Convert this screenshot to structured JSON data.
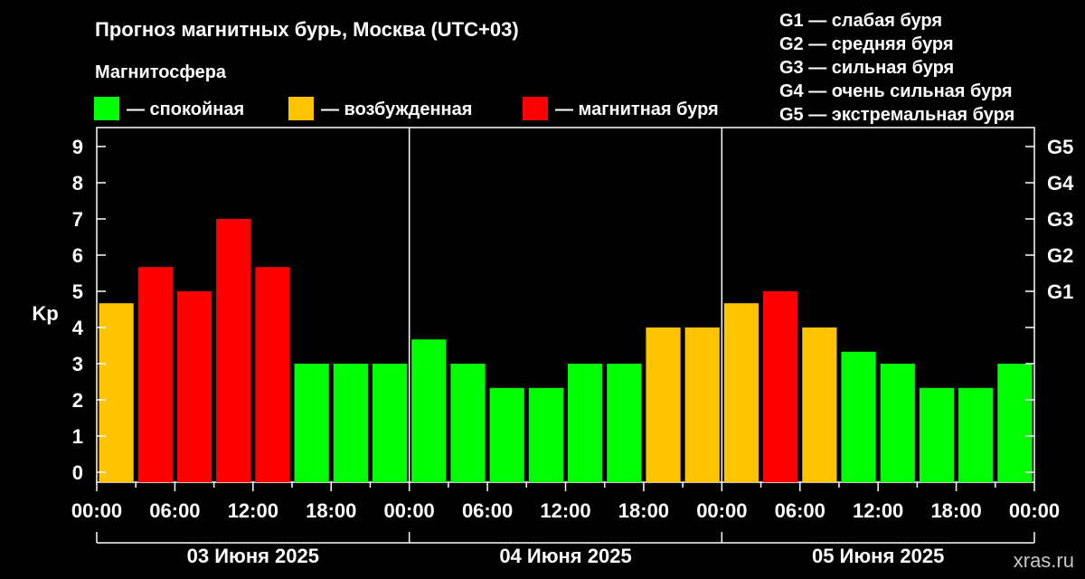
{
  "title": "Прогноз магнитных бурь, Москва (UTC+03)",
  "legend": {
    "heading": "Магнитосфера",
    "items": [
      {
        "label": "— спокойная",
        "color": "#00ff00"
      },
      {
        "label": "— возбужденная",
        "color": "#ffc400"
      },
      {
        "label": "— магнитная буря",
        "color": "#ff0000"
      }
    ]
  },
  "g_scale": [
    "G1 — слабая буря",
    "G2 — средняя буря",
    "G3 — сильная буря",
    "G4 — очень сильная буря",
    "G5 — экстремальная буря"
  ],
  "watermark": "xras.ru",
  "colors": {
    "calm": "#00ff00",
    "excited": "#ffc400",
    "storm": "#ff0000",
    "background": "#000000",
    "axis": "#ffffff"
  },
  "chart_data": {
    "type": "bar",
    "ylabel": "Kp",
    "ylim": [
      0,
      9
    ],
    "yticks": [
      "0",
      "1",
      "2",
      "3",
      "4",
      "5",
      "6",
      "7",
      "8",
      "9"
    ],
    "right_ticks": [
      {
        "kp": 5,
        "label": "G1"
      },
      {
        "kp": 6,
        "label": "G2"
      },
      {
        "kp": 7,
        "label": "G3"
      },
      {
        "kp": 8,
        "label": "G4"
      },
      {
        "kp": 9,
        "label": "G5"
      }
    ],
    "x_tick_labels": [
      "00:00",
      "06:00",
      "12:00",
      "18:00",
      "00:00",
      "06:00",
      "12:00",
      "18:00",
      "00:00",
      "06:00",
      "12:00",
      "18:00",
      "00:00"
    ],
    "days": [
      "03 Июня 2025",
      "04 Июня 2025",
      "05 Июня 2025"
    ],
    "interval_hours": 3,
    "grid": false,
    "values": [
      4.67,
      5.67,
      5.0,
      7.0,
      5.67,
      3.0,
      3.0,
      3.0,
      3.67,
      3.0,
      2.33,
      2.33,
      3.0,
      3.0,
      4.0,
      4.0,
      4.67,
      5.0,
      4.0,
      3.33,
      3.0,
      2.33,
      2.33,
      3.0
    ],
    "levels": [
      "excited",
      "storm",
      "storm",
      "storm",
      "storm",
      "calm",
      "calm",
      "calm",
      "calm",
      "calm",
      "calm",
      "calm",
      "calm",
      "calm",
      "excited",
      "excited",
      "excited",
      "storm",
      "excited",
      "calm",
      "calm",
      "calm",
      "calm",
      "calm"
    ]
  }
}
